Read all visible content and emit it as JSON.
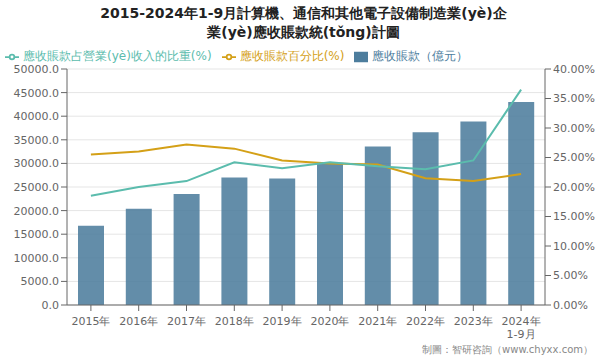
{
  "chart_data": {
    "type": "bar",
    "title": "2015-2024年1-9月計算機、通信和其他電子設備制造業(yè)企\n業(yè)應收賬款統(tǒng)計圖",
    "categories": [
      "2015年",
      "2016年",
      "2017年",
      "2018年",
      "2019年",
      "2020年",
      "2021年",
      "2022年",
      "2023年",
      "2024年\n1-9月"
    ],
    "series": [
      {
        "name": "應收賬款（億元）",
        "type": "bar",
        "axis": "y",
        "color": "#4d7d9d",
        "values": [
          16800,
          20400,
          23500,
          27000,
          26800,
          30100,
          33600,
          36600,
          38900,
          43000
        ]
      },
      {
        "name": "應收賬款百分比(%)",
        "type": "line",
        "axis": "y2",
        "color": "#d4a017",
        "marker": "none",
        "values": [
          25.5,
          26.0,
          27.2,
          26.5,
          24.5,
          24.0,
          23.8,
          21.5,
          21.0,
          22.2
        ]
      },
      {
        "name": "應收賬款占營業(yè)收入的比重(%)",
        "type": "line",
        "axis": "y2",
        "color": "#5bbcad",
        "marker": "none",
        "values": [
          18.5,
          20.0,
          21.0,
          24.2,
          23.2,
          24.2,
          23.5,
          23.0,
          24.5,
          36.5
        ]
      }
    ],
    "ylim": [
      0,
      50000
    ],
    "yticks": [
      {
        "value": 0,
        "label": "0.0"
      },
      {
        "value": 5000,
        "label": "5000.0"
      },
      {
        "value": 10000,
        "label": "10000.0"
      },
      {
        "value": 15000,
        "label": "15000.0"
      },
      {
        "value": 20000,
        "label": "20000.0"
      },
      {
        "value": 25000,
        "label": "25000.0"
      },
      {
        "value": 30000,
        "label": "30000.0"
      },
      {
        "value": 35000,
        "label": "35000.0"
      },
      {
        "value": 40000,
        "label": "40000.0"
      },
      {
        "value": 45000,
        "label": "45000.0"
      },
      {
        "value": 50000,
        "label": "50000.0"
      }
    ],
    "y2lim": [
      0,
      40
    ],
    "y2ticks": [
      {
        "value": 0,
        "label": "0.00%"
      },
      {
        "value": 5,
        "label": "5.00%"
      },
      {
        "value": 10,
        "label": "10.00%"
      },
      {
        "value": 15,
        "label": "15.00%"
      },
      {
        "value": 20,
        "label": "20.00%"
      },
      {
        "value": 25,
        "label": "25.00%"
      },
      {
        "value": 30,
        "label": "30.00%"
      },
      {
        "value": 35,
        "label": "35.00%"
      },
      {
        "value": 40,
        "label": "40.00%"
      }
    ],
    "grid": true,
    "legend": "upper left",
    "annotations": [
      "制圖：智研咨詢（www.chyxx.com）"
    ]
  }
}
